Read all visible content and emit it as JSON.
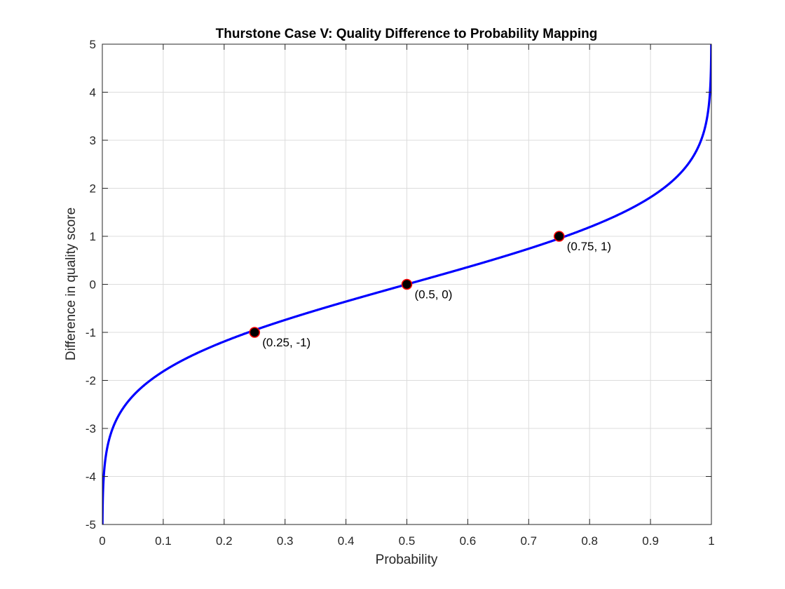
{
  "chart_data": {
    "type": "line",
    "title": "Thurstone Case V: Quality Difference to Probability Mapping",
    "xlabel": "Probability",
    "ylabel": "Difference in quality score",
    "xlim": [
      0,
      1
    ],
    "ylim": [
      -5,
      5
    ],
    "xticks": [
      0,
      0.1,
      0.2,
      0.3,
      0.4,
      0.5,
      0.6,
      0.7,
      0.8,
      0.9,
      1
    ],
    "xtick_labels": [
      "0",
      "0.1",
      "0.2",
      "0.3",
      "0.4",
      "0.5",
      "0.6",
      "0.7",
      "0.8",
      "0.9",
      "1"
    ],
    "yticks": [
      -5,
      -4,
      -3,
      -2,
      -1,
      0,
      1,
      2,
      3,
      4,
      5
    ],
    "ytick_labels": [
      "-5",
      "-4",
      "-3",
      "-2",
      "-1",
      "0",
      "1",
      "2",
      "3",
      "4",
      "5"
    ],
    "grid": true,
    "series": [
      {
        "color": "#0000ff",
        "x": [
          0.0001,
          0.0005,
          0.001,
          0.002,
          0.005,
          0.01,
          0.02,
          0.03,
          0.05,
          0.07,
          0.1,
          0.125,
          0.15,
          0.175,
          0.2,
          0.225,
          0.25,
          0.3,
          0.35,
          0.4,
          0.45,
          0.5,
          0.55,
          0.6,
          0.65,
          0.7,
          0.75,
          0.775,
          0.8,
          0.825,
          0.85,
          0.875,
          0.9,
          0.93,
          0.95,
          0.97,
          0.98,
          0.99,
          0.995,
          0.998,
          0.999,
          0.9995,
          0.9999
        ],
        "y": [
          -5.2,
          -4.57,
          -4.28,
          -3.95,
          -3.47,
          -3.07,
          -2.6,
          -2.28,
          -1.82,
          -1.46,
          -1.05,
          -0.75,
          -0.46,
          -0.18,
          -1.02,
          -0.71,
          -1.0,
          -0.86,
          -0.57,
          -0.36,
          -0.18,
          0.0,
          0.18,
          0.36,
          0.57,
          0.79,
          1.0,
          1.13,
          1.26,
          1.4,
          1.57,
          1.72,
          1.95,
          2.3,
          2.61,
          2.87,
          3.03,
          3.45,
          3.84,
          4.27,
          4.57,
          4.87,
          5.2
        ]
      }
    ],
    "markers": [
      {
        "x": 0.25,
        "y": -1,
        "label": "(0.25, -1)"
      },
      {
        "x": 0.5,
        "y": 0,
        "label": "(0.5, 0)"
      },
      {
        "x": 0.75,
        "y": 1,
        "label": "(0.75, 1)"
      }
    ],
    "marker_fill": "#000000",
    "marker_edge": "#ff0000"
  }
}
